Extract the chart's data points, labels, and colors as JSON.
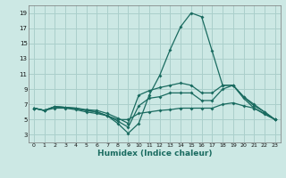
{
  "xlabel": "Humidex (Indice chaleur)",
  "bg_color": "#cce8e4",
  "grid_color": "#aacfcb",
  "line_color": "#1a6b60",
  "xlim": [
    -0.5,
    23.5
  ],
  "ylim": [
    2.0,
    20.0
  ],
  "xticks": [
    0,
    1,
    2,
    3,
    4,
    5,
    6,
    7,
    8,
    9,
    10,
    11,
    12,
    13,
    14,
    15,
    16,
    17,
    18,
    19,
    20,
    21,
    22,
    23
  ],
  "yticks": [
    3,
    5,
    7,
    9,
    11,
    13,
    15,
    17,
    19
  ],
  "series": [
    {
      "x": [
        0,
        1,
        2,
        3,
        4,
        5,
        6,
        7,
        8,
        9,
        10,
        11,
        12,
        13,
        14,
        15,
        16,
        17,
        18,
        19,
        20,
        21,
        22,
        23
      ],
      "y": [
        6.5,
        6.2,
        6.7,
        6.6,
        6.5,
        6.3,
        6.2,
        5.8,
        5.2,
        4.5,
        8.2,
        8.8,
        9.2,
        9.5,
        9.8,
        9.5,
        8.5,
        8.5,
        9.5,
        9.5,
        8.0,
        6.8,
        6.0,
        5.0
      ]
    },
    {
      "x": [
        0,
        1,
        2,
        3,
        4,
        5,
        6,
        7,
        8,
        9,
        10,
        11,
        12,
        13,
        14,
        15,
        16,
        17,
        18,
        19,
        20,
        21,
        22,
        23
      ],
      "y": [
        6.5,
        6.2,
        6.7,
        6.6,
        6.4,
        6.2,
        6.0,
        5.5,
        4.5,
        3.2,
        4.5,
        8.2,
        10.8,
        14.2,
        17.2,
        19.0,
        18.5,
        14.0,
        9.5,
        9.5,
        8.0,
        7.0,
        6.0,
        5.0
      ]
    },
    {
      "x": [
        0,
        1,
        2,
        3,
        4,
        5,
        6,
        7,
        8,
        9,
        10,
        11,
        12,
        13,
        14,
        15,
        16,
        17,
        18,
        19,
        20,
        21,
        22,
        23
      ],
      "y": [
        6.5,
        6.2,
        6.7,
        6.6,
        6.5,
        6.2,
        6.0,
        5.5,
        4.8,
        4.0,
        6.8,
        7.8,
        8.0,
        8.5,
        8.5,
        8.5,
        7.5,
        7.5,
        9.0,
        9.5,
        7.8,
        6.5,
        5.8,
        5.0
      ]
    },
    {
      "x": [
        0,
        1,
        2,
        3,
        4,
        5,
        6,
        7,
        8,
        9,
        10,
        11,
        12,
        13,
        14,
        15,
        16,
        17,
        18,
        19,
        20,
        21,
        22,
        23
      ],
      "y": [
        6.5,
        6.2,
        6.5,
        6.5,
        6.3,
        6.0,
        5.8,
        5.5,
        5.0,
        5.0,
        5.8,
        6.0,
        6.2,
        6.3,
        6.5,
        6.5,
        6.5,
        6.5,
        7.0,
        7.2,
        6.8,
        6.5,
        5.7,
        5.0
      ]
    }
  ]
}
